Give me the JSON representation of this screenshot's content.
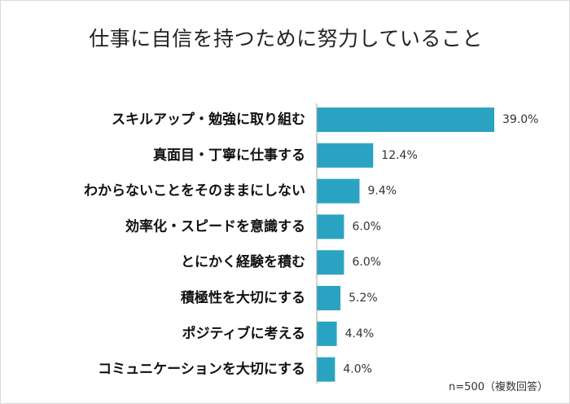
{
  "chart_data": {
    "type": "bar",
    "orientation": "horizontal",
    "title": "仕事に自信を持つために努力していること",
    "note": "n=500（複数回答）",
    "categories": [
      "スキルアップ・勉強に取り組む",
      "真面目・丁寧に仕事する",
      "わからないことをそのままにしない",
      "効率化・スピードを意識する",
      "とにかく経験を積む",
      "積極性を大切にする",
      "ポジティブに考える",
      "コミュニケーションを大切にする"
    ],
    "values": [
      39.0,
      12.4,
      9.4,
      6.0,
      6.0,
      5.2,
      4.4,
      4.0
    ],
    "value_labels": [
      "39.0%",
      "12.4%",
      "9.4%",
      "6.0%",
      "6.0%",
      "5.2%",
      "4.4%",
      "4.0%"
    ],
    "unit": "%",
    "xlim": [
      0,
      39.0
    ],
    "grid": false,
    "legend": "none",
    "bar_color": "#2aa3c2",
    "axis_color": "#a6a6a6"
  }
}
